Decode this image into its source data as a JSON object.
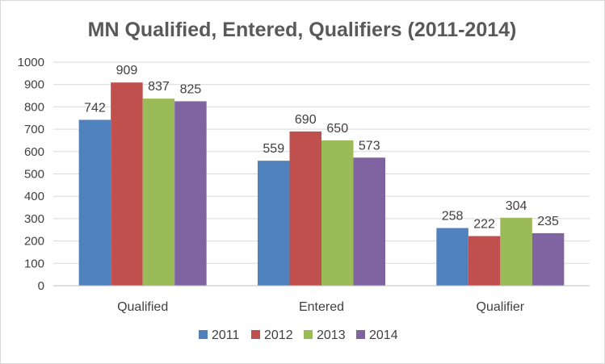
{
  "chart_data": {
    "type": "bar",
    "title": "MN Qualified, Entered, Qualifiers (2011-2014)",
    "categories": [
      "Qualified",
      "Entered",
      "Qualifier"
    ],
    "series": [
      {
        "name": "2011",
        "color": "#4f81bd",
        "values": [
          742,
          559,
          258
        ]
      },
      {
        "name": "2012",
        "color": "#c0504d",
        "values": [
          909,
          690,
          222
        ]
      },
      {
        "name": "2013",
        "color": "#9bbb59",
        "values": [
          837,
          650,
          304
        ]
      },
      {
        "name": "2014",
        "color": "#8064a2",
        "values": [
          825,
          573,
          235
        ]
      }
    ],
    "ylim": [
      0,
      1000
    ],
    "yticks": [
      0,
      100,
      200,
      300,
      400,
      500,
      600,
      700,
      800,
      900,
      1000
    ],
    "grid": true,
    "legend_position": "bottom",
    "data_labels": true
  }
}
